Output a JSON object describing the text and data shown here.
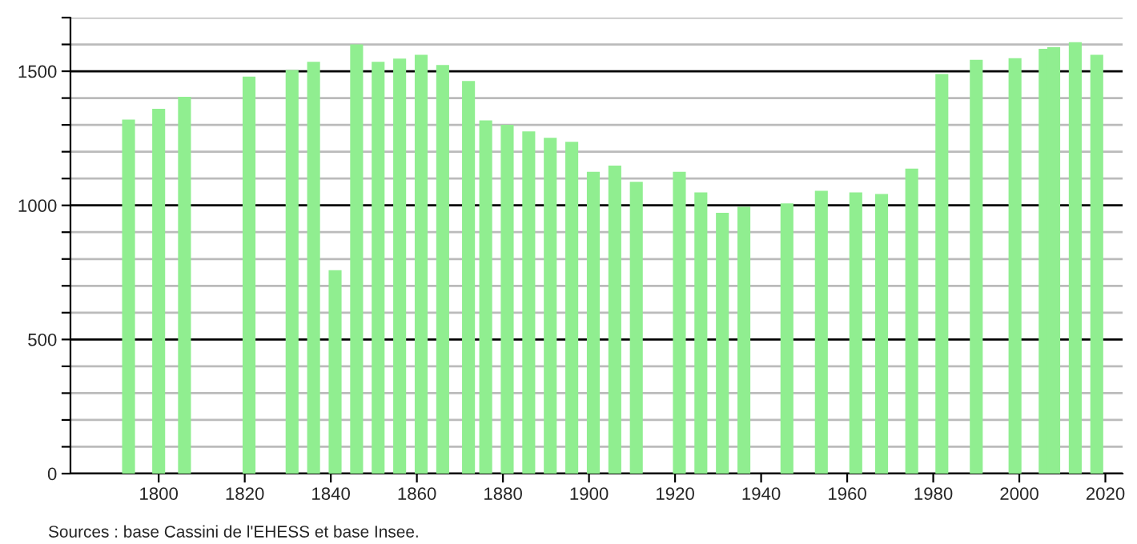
{
  "chart_data": {
    "type": "bar",
    "x": [
      1793,
      1800,
      1806,
      1821,
      1831,
      1836,
      1841,
      1846,
      1851,
      1856,
      1861,
      1866,
      1872,
      1876,
      1881,
      1886,
      1891,
      1896,
      1901,
      1906,
      1911,
      1921,
      1926,
      1931,
      1936,
      1946,
      1954,
      1962,
      1968,
      1975,
      1982,
      1990,
      1999,
      2006,
      2008,
      2013,
      2018
    ],
    "values": [
      1320,
      1360,
      1405,
      1480,
      1505,
      1535,
      758,
      1600,
      1535,
      1547,
      1561,
      1523,
      1464,
      1317,
      1300,
      1276,
      1252,
      1237,
      1125,
      1148,
      1088,
      1125,
      1048,
      972,
      995,
      1007,
      1054,
      1048,
      1042,
      1137,
      1490,
      1543,
      1549,
      1584,
      1590,
      1608,
      1561
    ],
    "color": "#90ee90",
    "xlim": [
      1779.5,
      2024
    ],
    "xticks": [
      1800,
      1820,
      1840,
      1860,
      1880,
      1900,
      1920,
      1940,
      1960,
      1980,
      2000,
      2020
    ],
    "ylim": [
      0,
      1700
    ],
    "yticks": [
      0,
      {
        "value": 100,
        "label": null
      },
      {
        "value": 200,
        "label": null
      },
      {
        "value": 300,
        "label": null
      },
      {
        "value": 400,
        "label": null
      },
      500,
      {
        "value": 600,
        "label": null
      },
      {
        "value": 700,
        "label": null
      },
      {
        "value": 800,
        "label": null
      },
      {
        "value": 900,
        "label": null
      },
      1000,
      {
        "value": 1100,
        "label": null
      },
      {
        "value": 1200,
        "label": null
      },
      {
        "value": 1300,
        "label": null
      },
      {
        "value": 1400,
        "label": null
      },
      1500,
      {
        "value": 1600,
        "label": null
      },
      {
        "value": 1700,
        "label": null
      }
    ],
    "grid": "y",
    "annotations": [
      "Sources : base Cassini de l'EHESS et base Insee."
    ]
  }
}
